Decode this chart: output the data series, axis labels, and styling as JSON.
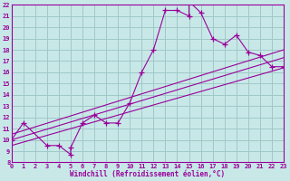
{
  "bg_color": "#c8e8e8",
  "grid_color": "#a0c8c8",
  "line_color": "#990099",
  "marker_color": "#990099",
  "xlabel": "Windchill (Refroidissement éolien,°C)",
  "xlim": [
    0,
    23
  ],
  "ylim": [
    8,
    22
  ],
  "xticks": [
    0,
    1,
    2,
    3,
    4,
    5,
    6,
    7,
    8,
    9,
    10,
    11,
    12,
    13,
    14,
    15,
    16,
    17,
    18,
    19,
    20,
    21,
    22,
    23
  ],
  "yticks": [
    8,
    9,
    10,
    11,
    12,
    13,
    14,
    15,
    16,
    17,
    18,
    19,
    20,
    21,
    22
  ],
  "scatter_x": [
    0,
    1,
    3,
    4,
    5,
    5,
    6,
    7,
    8,
    9,
    10,
    11,
    12,
    13,
    14,
    15,
    15,
    16,
    17,
    18,
    19,
    20,
    21,
    22,
    23
  ],
  "scatter_y": [
    10,
    11.5,
    9.5,
    9.5,
    8.7,
    9.3,
    11.5,
    12.2,
    11.5,
    11.5,
    13.3,
    16.0,
    18.0,
    21.5,
    21.5,
    21.0,
    22.3,
    21.3,
    19.0,
    18.5,
    19.3,
    17.8,
    17.5,
    16.5,
    16.5
  ],
  "line1_x": [
    0,
    23
  ],
  "line1_y": [
    10.0,
    17.3
  ],
  "line2_x": [
    0,
    23
  ],
  "line2_y": [
    10.5,
    18.0
  ],
  "line3_x": [
    0,
    23
  ],
  "line3_y": [
    9.5,
    16.4
  ]
}
